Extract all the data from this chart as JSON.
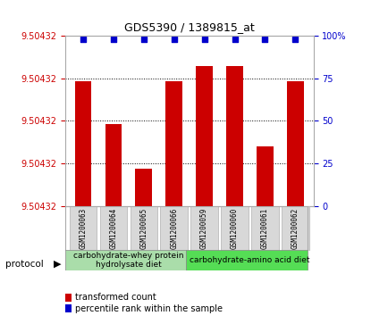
{
  "title": "GDS5390 / 1389815_at",
  "samples": [
    "GSM1200063",
    "GSM1200064",
    "GSM1200065",
    "GSM1200066",
    "GSM1200059",
    "GSM1200060",
    "GSM1200061",
    "GSM1200062"
  ],
  "bar_heights_pct": [
    73,
    48,
    22,
    73,
    82,
    82,
    35,
    73
  ],
  "percentile_values": [
    98,
    98,
    98,
    98,
    98,
    98,
    98,
    98
  ],
  "ymin": 9.50432,
  "ymax": 9.50432,
  "ytick_labels": [
    "9.50432",
    "9.50432",
    "9.50432",
    "9.50432",
    "9.50432"
  ],
  "right_yticks": [
    0,
    25,
    50,
    75,
    100
  ],
  "bar_color": "#cc0000",
  "dot_color": "#0000cc",
  "protocol_group1_label": "carbohydrate-whey protein\nhydrolysate diet",
  "protocol_group2_label": "carbohydrate-amino acid diet",
  "protocol_group1_color": "#aaddaa",
  "protocol_group2_color": "#55dd55",
  "protocol_group1_size": 4,
  "protocol_group2_size": 4,
  "legend_label1": "transformed count",
  "legend_label2": "percentile rank within the sample",
  "plot_bg_color": "#ffffff",
  "label_bg_color": "#d8d8d8",
  "grid_color": "#000000",
  "title_fontsize": 9,
  "tick_fontsize": 7,
  "sample_fontsize": 5.5,
  "proto_fontsize": 6.5
}
